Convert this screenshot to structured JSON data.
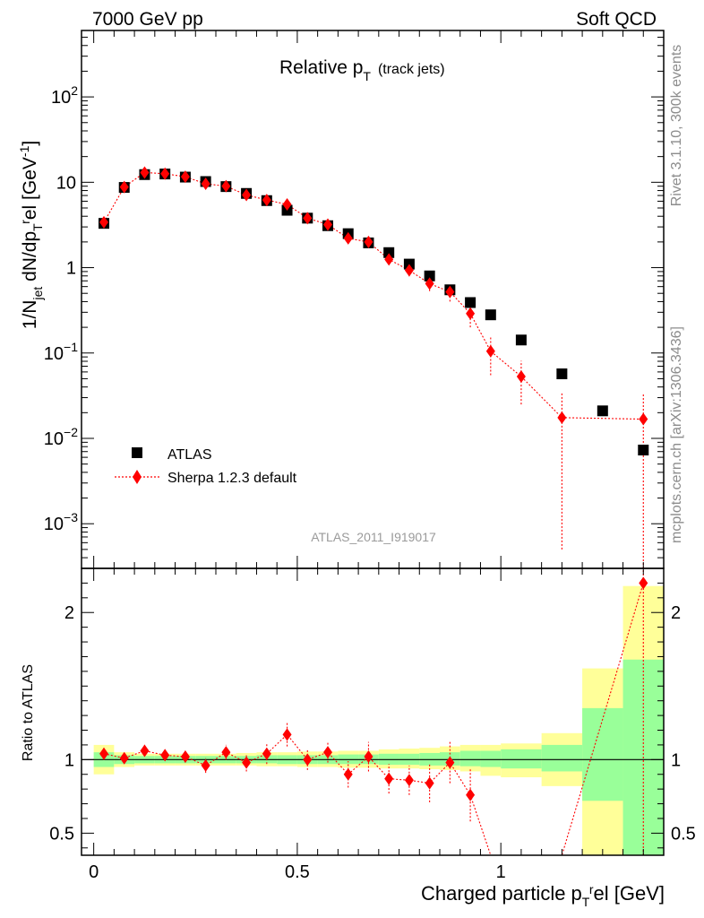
{
  "header": {
    "left": "7000 GeV pp",
    "right": "Soft QCD"
  },
  "side_text": {
    "rivet": "Rivet 3.1.10,  300k events",
    "mcplots": "mcplots.cern.ch [arXiv:1306.3436]"
  },
  "watermark": "ATLAS_2011_I919017",
  "legend": {
    "atlas": "ATLAS",
    "sherpa": "Sherpa 1.2.3 default"
  },
  "colors": {
    "data": "#000000",
    "mc": "#ff0000",
    "band_inner": "#99ff99",
    "band_outer": "#ffff99"
  },
  "chart_data": [
    {
      "type": "scatter",
      "panel": "main",
      "title": "Relative p_T (track jets)",
      "title_main": "Relative p",
      "title_sub": "T",
      "title_suffix": "(track jets)",
      "ylabel": "1/N_jet dN/dp_T^rel [GeV^-1]",
      "xlabel": "",
      "yscale": "log",
      "xlim": [
        -0.03,
        1.4
      ],
      "ylim": [
        0.0003,
        600
      ],
      "yticks": [
        {
          "v": 0.001,
          "base": "10",
          "exp": "−3"
        },
        {
          "v": 0.01,
          "base": "10",
          "exp": "−2"
        },
        {
          "v": 0.1,
          "base": "10",
          "exp": "−1"
        },
        {
          "v": 1,
          "base": "1",
          "exp": ""
        },
        {
          "v": 10,
          "base": "10",
          "exp": ""
        },
        {
          "v": 100,
          "base": "10",
          "exp": "2"
        }
      ],
      "series": [
        {
          "name": "ATLAS",
          "x": [
            0.025,
            0.075,
            0.125,
            0.175,
            0.225,
            0.275,
            0.325,
            0.375,
            0.425,
            0.475,
            0.525,
            0.575,
            0.625,
            0.675,
            0.725,
            0.775,
            0.825,
            0.875,
            0.925,
            0.975,
            1.05,
            1.15,
            1.25,
            1.35
          ],
          "y": [
            3.3,
            8.7,
            12.3,
            12.5,
            11.5,
            10.2,
            8.9,
            7.4,
            6.1,
            4.7,
            3.8,
            3.1,
            2.5,
            1.95,
            1.5,
            1.1,
            0.8,
            0.55,
            0.39,
            0.28,
            0.142,
            0.057,
            0.021,
            0.0073
          ]
        },
        {
          "name": "Sherpa 1.2.3 default",
          "x": [
            0.025,
            0.075,
            0.125,
            0.175,
            0.225,
            0.275,
            0.325,
            0.375,
            0.425,
            0.475,
            0.525,
            0.575,
            0.625,
            0.675,
            0.725,
            0.775,
            0.825,
            0.875,
            0.925,
            0.975,
            1.05,
            1.15,
            1.35
          ],
          "y": [
            3.4,
            8.8,
            13.0,
            12.6,
            11.6,
            9.6,
            9.0,
            7.1,
            6.2,
            5.5,
            3.8,
            3.2,
            2.2,
            2.0,
            1.25,
            0.93,
            0.65,
            0.52,
            0.29,
            0.105,
            0.053,
            0.0175,
            0.0168
          ],
          "yerr": [
            0.12,
            0.25,
            0.4,
            0.4,
            0.35,
            0.35,
            0.3,
            0.3,
            0.28,
            0.3,
            0.2,
            0.2,
            0.18,
            0.2,
            0.15,
            0.14,
            0.12,
            0.12,
            0.09,
            0.05,
            0.028,
            0.017,
            0.017
          ]
        }
      ]
    },
    {
      "type": "scatter",
      "panel": "ratio",
      "title": "",
      "ylabel": "Ratio to ATLAS",
      "xlabel": "Charged particle p_T^rel [GeV]",
      "xlabel_main": "Charged particle p",
      "xlabel_sub": "T",
      "xlabel_sup": "r",
      "xlabel_suffix": "el [GeV]",
      "xlim": [
        -0.03,
        1.4
      ],
      "ylim": [
        0.35,
        2.3
      ],
      "yticks": [
        0.5,
        1,
        2
      ],
      "xticks": [
        0,
        0.5,
        1
      ],
      "xtick_labels": [
        "0",
        "0.5",
        "1"
      ],
      "reference_line": 1,
      "band_bins": [
        {
          "x0": 0.0,
          "x1": 0.05,
          "inner": [
            0.95,
            1.05
          ],
          "outer": [
            0.9,
            1.1
          ]
        },
        {
          "x0": 0.05,
          "x1": 0.1,
          "inner": [
            0.97,
            1.03
          ],
          "outer": [
            0.95,
            1.05
          ]
        },
        {
          "x0": 0.1,
          "x1": 0.15,
          "inner": [
            0.975,
            1.025
          ],
          "outer": [
            0.96,
            1.04
          ]
        },
        {
          "x0": 0.15,
          "x1": 0.2,
          "inner": [
            0.975,
            1.025
          ],
          "outer": [
            0.96,
            1.04
          ]
        },
        {
          "x0": 0.2,
          "x1": 0.25,
          "inner": [
            0.975,
            1.025
          ],
          "outer": [
            0.96,
            1.04
          ]
        },
        {
          "x0": 0.25,
          "x1": 0.3,
          "inner": [
            0.975,
            1.025
          ],
          "outer": [
            0.96,
            1.04
          ]
        },
        {
          "x0": 0.3,
          "x1": 0.35,
          "inner": [
            0.975,
            1.025
          ],
          "outer": [
            0.96,
            1.04
          ]
        },
        {
          "x0": 0.35,
          "x1": 0.4,
          "inner": [
            0.975,
            1.025
          ],
          "outer": [
            0.96,
            1.045
          ]
        },
        {
          "x0": 0.4,
          "x1": 0.45,
          "inner": [
            0.975,
            1.03
          ],
          "outer": [
            0.955,
            1.05
          ]
        },
        {
          "x0": 0.45,
          "x1": 0.5,
          "inner": [
            0.97,
            1.03
          ],
          "outer": [
            0.955,
            1.05
          ]
        },
        {
          "x0": 0.5,
          "x1": 0.55,
          "inner": [
            0.97,
            1.03
          ],
          "outer": [
            0.95,
            1.055
          ]
        },
        {
          "x0": 0.55,
          "x1": 0.6,
          "inner": [
            0.97,
            1.03
          ],
          "outer": [
            0.95,
            1.055
          ]
        },
        {
          "x0": 0.6,
          "x1": 0.65,
          "inner": [
            0.97,
            1.035
          ],
          "outer": [
            0.945,
            1.06
          ]
        },
        {
          "x0": 0.65,
          "x1": 0.7,
          "inner": [
            0.97,
            1.035
          ],
          "outer": [
            0.945,
            1.06
          ]
        },
        {
          "x0": 0.7,
          "x1": 0.75,
          "inner": [
            0.965,
            1.04
          ],
          "outer": [
            0.94,
            1.07
          ]
        },
        {
          "x0": 0.75,
          "x1": 0.8,
          "inner": [
            0.965,
            1.04
          ],
          "outer": [
            0.94,
            1.075
          ]
        },
        {
          "x0": 0.8,
          "x1": 0.85,
          "inner": [
            0.96,
            1.045
          ],
          "outer": [
            0.935,
            1.08
          ]
        },
        {
          "x0": 0.85,
          "x1": 0.9,
          "inner": [
            0.96,
            1.05
          ],
          "outer": [
            0.93,
            1.09
          ]
        },
        {
          "x0": 0.9,
          "x1": 0.95,
          "inner": [
            0.955,
            1.06
          ],
          "outer": [
            0.92,
            1.1
          ]
        },
        {
          "x0": 0.95,
          "x1": 1.0,
          "inner": [
            0.95,
            1.06
          ],
          "outer": [
            0.89,
            1.1
          ]
        },
        {
          "x0": 1.0,
          "x1": 1.1,
          "inner": [
            0.94,
            1.07
          ],
          "outer": [
            0.88,
            1.11
          ]
        },
        {
          "x0": 1.1,
          "x1": 1.2,
          "inner": [
            0.92,
            1.1
          ],
          "outer": [
            0.82,
            1.18
          ]
        },
        {
          "x0": 1.2,
          "x1": 1.3,
          "inner": [
            0.72,
            1.35
          ],
          "outer": [
            0.35,
            1.62
          ]
        },
        {
          "x0": 1.3,
          "x1": 1.4,
          "inner": [
            0.35,
            1.68
          ],
          "outer": [
            0.35,
            2.18
          ]
        }
      ],
      "series": [
        {
          "name": "Sherpa 1.2.3 default",
          "x": [
            0.025,
            0.075,
            0.125,
            0.175,
            0.225,
            0.275,
            0.325,
            0.375,
            0.425,
            0.475,
            0.525,
            0.575,
            0.625,
            0.675,
            0.725,
            0.775,
            0.825,
            0.875,
            0.925,
            0.975,
            1.05,
            1.15,
            1.35
          ],
          "y": [
            1.04,
            1.01,
            1.06,
            1.03,
            1.02,
            0.96,
            1.05,
            0.98,
            1.04,
            1.17,
            1.0,
            1.05,
            0.9,
            1.02,
            0.87,
            0.86,
            0.84,
            0.98,
            0.76,
            0.3,
            0.3,
            0.3,
            2.2
          ],
          "yerr": [
            0.04,
            0.03,
            0.04,
            0.04,
            0.04,
            0.05,
            0.05,
            0.06,
            0.07,
            0.08,
            0.07,
            0.07,
            0.09,
            0.1,
            0.1,
            0.1,
            0.13,
            0.14,
            0.18,
            0.0,
            0.0,
            0.0,
            1.9
          ],
          "shown": [
            true,
            true,
            true,
            true,
            true,
            true,
            true,
            true,
            true,
            true,
            true,
            true,
            true,
            true,
            true,
            true,
            true,
            true,
            true,
            false,
            false,
            false,
            true
          ]
        }
      ]
    }
  ]
}
